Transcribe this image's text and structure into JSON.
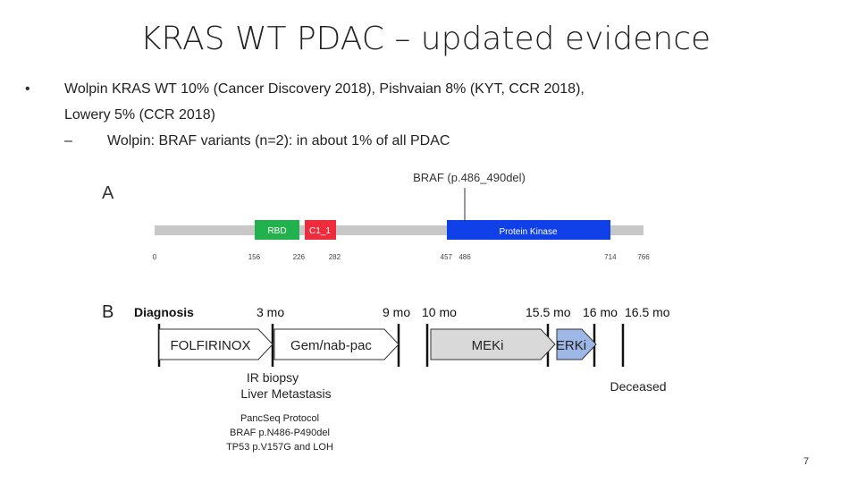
{
  "header": {
    "title": "KRAS WT PDAC – updated evidence"
  },
  "bullets": [
    {
      "lines": [
        "Wolpin KRAS WT 10% (Cancer Discovery 2018), Pishvaian 8% (KYT, CCR 2018),",
        "Lowery 5% (CCR 2018)"
      ],
      "sub": [
        "Wolpin: BRAF variants (n=2): in about 1% of all PDAC"
      ]
    }
  ],
  "figure_a": {
    "label": "A",
    "mutation": "BRAF (p.486_490del)",
    "domains": [
      "RBD",
      "C1_1",
      "Protein Kinase"
    ],
    "positions": [
      0,
      156,
      226,
      282,
      457,
      486,
      714,
      766
    ]
  },
  "figure_b": {
    "label": "B",
    "timepoints": [
      "Diagnosis",
      "3 mo",
      "9 mo",
      "10 mo",
      "15.5 mo",
      "16 mo",
      "16.5 mo"
    ],
    "treatments": [
      "FOLFIRINOX",
      "Gem/nab-pac",
      "MEKi",
      "ERKi"
    ],
    "events": [
      "IR biopsy",
      "Liver Metastasis",
      "Deceased"
    ],
    "notes": [
      "PancSeq Protocol",
      "BRAF p.N486-P490del",
      "TP53 p.V157G and LOH"
    ]
  },
  "page_number": "7"
}
